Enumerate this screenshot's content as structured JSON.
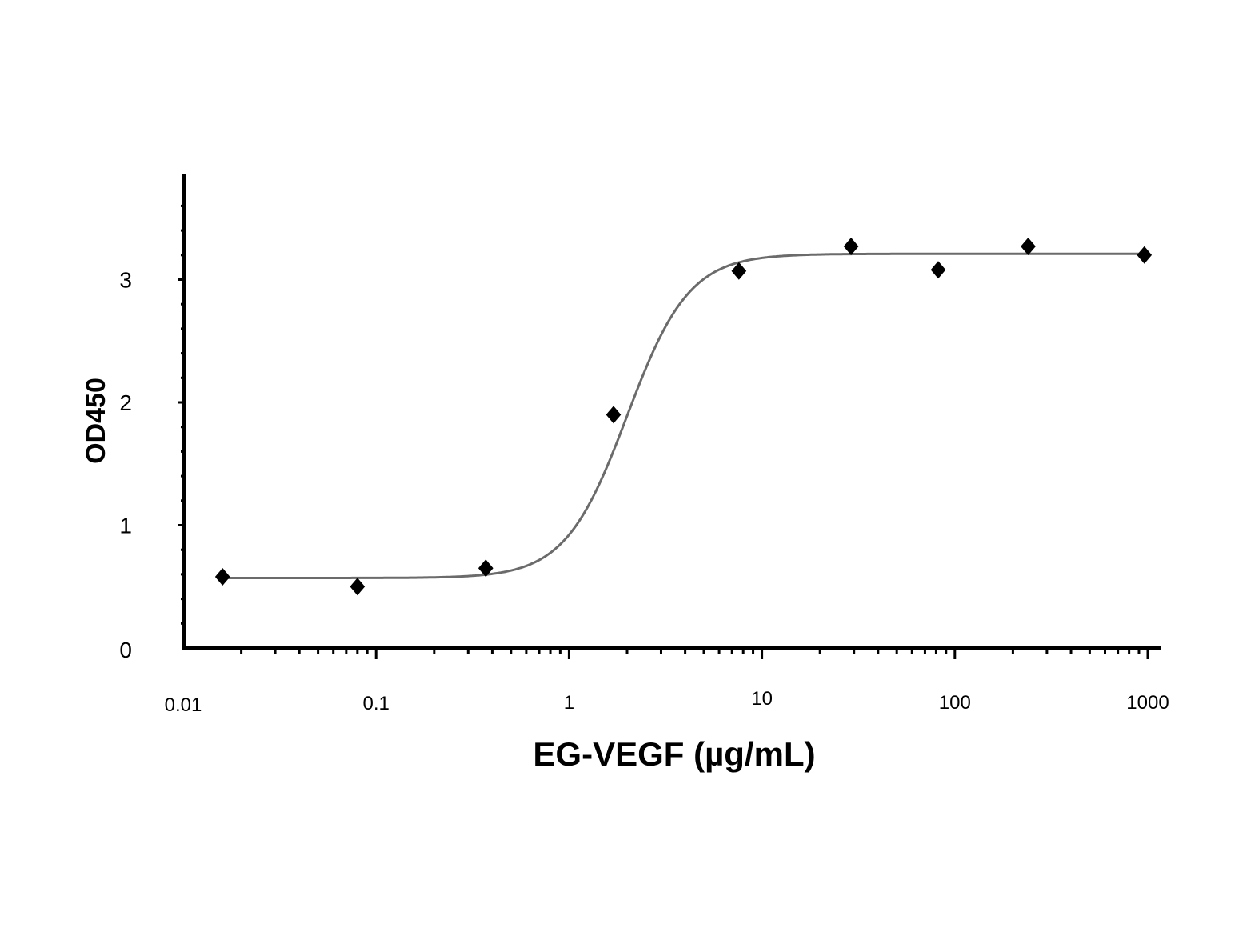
{
  "chart_data": {
    "type": "scatter",
    "title": "",
    "xlabel": "EG-VEGF (µg/mL)",
    "ylabel": "OD450",
    "x_scale": "log",
    "xlim": [
      0.01,
      1000
    ],
    "ylim": [
      0,
      3.7
    ],
    "x_ticks": [
      "0.01",
      "0.1",
      "1",
      "10",
      "100",
      "1000"
    ],
    "y_ticks": [
      "0",
      "1",
      "2",
      "3"
    ],
    "grid": false,
    "legend": "none",
    "marker": "diamond",
    "marker_color": "#000000",
    "curve_color": "#6b6b6b",
    "series": [
      {
        "x": [
          0.016,
          0.08,
          0.37,
          1.7,
          7.6,
          29,
          82,
          240,
          960
        ],
        "values": [
          0.58,
          0.5,
          0.65,
          1.9,
          3.07,
          3.27,
          3.08,
          3.27,
          3.2
        ]
      }
    ],
    "fit_curve": {
      "bottom": 0.57,
      "top": 3.21,
      "ec50": 2.0,
      "hill": 2.7
    }
  }
}
